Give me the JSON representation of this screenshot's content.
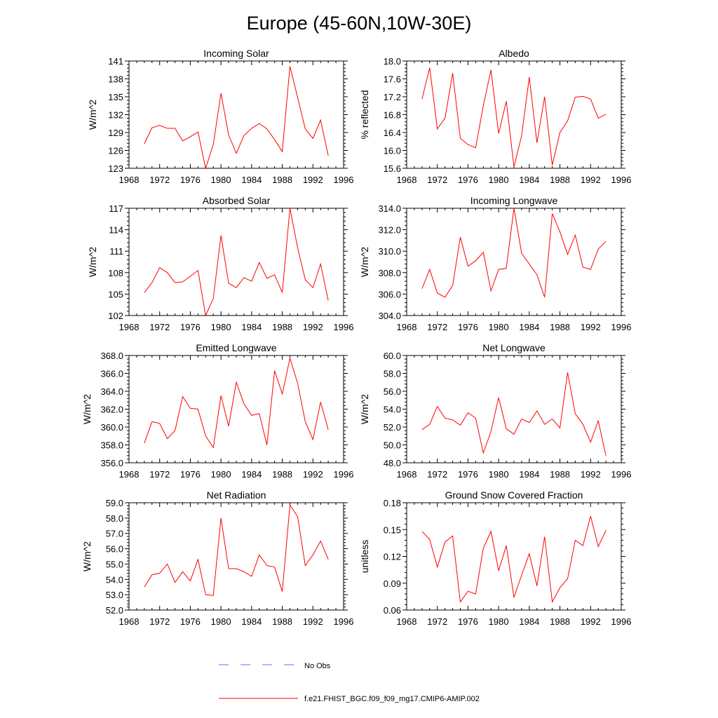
{
  "figure": {
    "title": "Europe (45-60N,10W-30E)",
    "line_color": "#ff0000",
    "obs_color": "#6a6aff"
  },
  "legend": {
    "obs_label": "No Obs",
    "model_label": "f.e21.FHIST_BGC.f09_f09_mg17.CMIP6-AMIP.002"
  },
  "chart_data": [
    {
      "type": "line",
      "title": "Incoming Solar",
      "ylabel": "W/m^2",
      "xlim": [
        1968,
        1996
      ],
      "xticks": [
        1968,
        1972,
        1976,
        1980,
        1984,
        1988,
        1992,
        1996
      ],
      "ylim": [
        123,
        141
      ],
      "yticks": [
        123,
        126,
        129,
        132,
        135,
        138,
        141
      ],
      "ydecimals": 0,
      "x": [
        1970,
        1971,
        1972,
        1973,
        1974,
        1975,
        1976,
        1977,
        1978,
        1979,
        1980,
        1981,
        1982,
        1983,
        1984,
        1985,
        1986,
        1987,
        1988,
        1989,
        1990,
        1991,
        1992,
        1993,
        1994
      ],
      "y": [
        127.1,
        129.8,
        130.2,
        129.7,
        129.7,
        127.6,
        128.3,
        129.1,
        123.0,
        127.0,
        135.6,
        128.6,
        125.5,
        128.5,
        129.7,
        130.5,
        129.6,
        127.8,
        125.8,
        140.1,
        134.9,
        129.6,
        128.0,
        131.1,
        125.1
      ]
    },
    {
      "type": "line",
      "title": "Albedo",
      "ylabel": "% reflected",
      "xlim": [
        1968,
        1996
      ],
      "xticks": [
        1968,
        1972,
        1976,
        1980,
        1984,
        1988,
        1992,
        1996
      ],
      "ylim": [
        15.6,
        18.0
      ],
      "yticks": [
        15.6,
        16.0,
        16.4,
        16.8,
        17.2,
        17.6,
        18.0
      ],
      "ydecimals": 1,
      "x": [
        1970,
        1971,
        1972,
        1973,
        1974,
        1975,
        1976,
        1977,
        1978,
        1979,
        1980,
        1981,
        1982,
        1983,
        1984,
        1985,
        1986,
        1987,
        1988,
        1989,
        1990,
        1991,
        1992,
        1993,
        1994
      ],
      "y": [
        17.15,
        17.85,
        16.48,
        16.72,
        17.73,
        16.27,
        16.13,
        16.06,
        17.0,
        17.8,
        16.38,
        17.1,
        15.63,
        16.33,
        17.64,
        16.17,
        17.2,
        15.67,
        16.4,
        16.66,
        17.19,
        17.21,
        17.15,
        16.72,
        16.81
      ]
    },
    {
      "type": "line",
      "title": "Absorbed Solar",
      "ylabel": "W/m^2",
      "xlim": [
        1968,
        1996
      ],
      "xticks": [
        1968,
        1972,
        1976,
        1980,
        1984,
        1988,
        1992,
        1996
      ],
      "ylim": [
        102,
        117
      ],
      "yticks": [
        102,
        105,
        108,
        111,
        114,
        117
      ],
      "ydecimals": 0,
      "x": [
        1970,
        1971,
        1972,
        1973,
        1974,
        1975,
        1976,
        1977,
        1978,
        1979,
        1980,
        1981,
        1982,
        1983,
        1984,
        1985,
        1986,
        1987,
        1988,
        1989,
        1990,
        1991,
        1992,
        1993,
        1994
      ],
      "y": [
        105.2,
        106.6,
        108.7,
        108.0,
        106.6,
        106.7,
        107.5,
        108.3,
        102.0,
        104.4,
        113.2,
        106.5,
        105.9,
        107.3,
        106.8,
        109.4,
        107.2,
        107.7,
        105.2,
        117.0,
        111.5,
        107.0,
        105.9,
        109.2,
        104.1
      ]
    },
    {
      "type": "line",
      "title": "Incoming Longwave",
      "ylabel": "W/m^2",
      "xlim": [
        1968,
        1996
      ],
      "xticks": [
        1968,
        1972,
        1976,
        1980,
        1984,
        1988,
        1992,
        1996
      ],
      "ylim": [
        304.0,
        314.0
      ],
      "yticks": [
        304.0,
        306.0,
        308.0,
        310.0,
        312.0,
        314.0
      ],
      "ydecimals": 1,
      "x": [
        1970,
        1971,
        1972,
        1973,
        1974,
        1975,
        1976,
        1977,
        1978,
        1979,
        1980,
        1981,
        1982,
        1983,
        1984,
        1985,
        1986,
        1987,
        1988,
        1989,
        1990,
        1991,
        1992,
        1993,
        1994
      ],
      "y": [
        306.5,
        308.3,
        306.1,
        305.7,
        306.8,
        311.3,
        308.6,
        309.1,
        309.9,
        306.3,
        308.3,
        308.4,
        314.0,
        309.8,
        308.8,
        307.8,
        305.7,
        313.5,
        311.8,
        309.7,
        311.5,
        308.5,
        308.3,
        310.2,
        310.9
      ]
    },
    {
      "type": "line",
      "title": "Emitted Longwave",
      "ylabel": "W/m^2",
      "xlim": [
        1968,
        1996
      ],
      "xticks": [
        1968,
        1972,
        1976,
        1980,
        1984,
        1988,
        1992,
        1996
      ],
      "ylim": [
        356.0,
        368.0
      ],
      "yticks": [
        356.0,
        358.0,
        360.0,
        362.0,
        364.0,
        366.0,
        368.0
      ],
      "ydecimals": 1,
      "x": [
        1970,
        1971,
        1972,
        1973,
        1974,
        1975,
        1976,
        1977,
        1978,
        1979,
        1980,
        1981,
        1982,
        1983,
        1984,
        1985,
        1986,
        1987,
        1988,
        1989,
        1990,
        1991,
        1992,
        1993,
        1994
      ],
      "y": [
        358.2,
        360.6,
        360.4,
        358.7,
        359.6,
        363.4,
        362.1,
        362.0,
        359.0,
        357.7,
        363.5,
        360.1,
        365.0,
        362.6,
        361.3,
        361.5,
        358.0,
        366.3,
        363.7,
        367.7,
        364.9,
        360.6,
        358.6,
        362.8,
        359.7
      ]
    },
    {
      "type": "line",
      "title": "Net Longwave",
      "ylabel": "W/m^2",
      "xlim": [
        1968,
        1996
      ],
      "xticks": [
        1968,
        1972,
        1976,
        1980,
        1984,
        1988,
        1992,
        1996
      ],
      "ylim": [
        48.0,
        60.0
      ],
      "yticks": [
        48.0,
        50.0,
        52.0,
        54.0,
        56.0,
        58.0,
        60.0
      ],
      "ydecimals": 1,
      "x": [
        1970,
        1971,
        1972,
        1973,
        1974,
        1975,
        1976,
        1977,
        1978,
        1979,
        1980,
        1981,
        1982,
        1983,
        1984,
        1985,
        1986,
        1987,
        1988,
        1989,
        1990,
        1991,
        1992,
        1993,
        1994
      ],
      "y": [
        51.7,
        52.3,
        54.3,
        53.0,
        52.8,
        52.2,
        53.6,
        53.0,
        49.1,
        51.5,
        55.3,
        51.8,
        51.2,
        52.9,
        52.5,
        53.8,
        52.3,
        52.9,
        51.9,
        58.1,
        53.5,
        52.3,
        50.3,
        52.7,
        48.8
      ]
    },
    {
      "type": "line",
      "title": "Net Radiation",
      "ylabel": "W/m^2",
      "xlim": [
        1968,
        1996
      ],
      "xticks": [
        1968,
        1972,
        1976,
        1980,
        1984,
        1988,
        1992,
        1996
      ],
      "ylim": [
        52.0,
        59.0
      ],
      "yticks": [
        52.0,
        53.0,
        54.0,
        55.0,
        56.0,
        57.0,
        58.0,
        59.0
      ],
      "ydecimals": 1,
      "x": [
        1970,
        1971,
        1972,
        1973,
        1974,
        1975,
        1976,
        1977,
        1978,
        1979,
        1980,
        1981,
        1982,
        1983,
        1984,
        1985,
        1986,
        1987,
        1988,
        1989,
        1990,
        1991,
        1992,
        1993,
        1994
      ],
      "y": [
        53.5,
        54.3,
        54.4,
        55.0,
        53.8,
        54.5,
        53.9,
        55.3,
        53.0,
        52.95,
        58.0,
        54.7,
        54.7,
        54.5,
        54.2,
        55.6,
        54.9,
        54.8,
        53.2,
        58.85,
        58.1,
        54.9,
        55.6,
        56.5,
        55.3
      ]
    },
    {
      "type": "line",
      "title": "Ground Snow Covered Fraction",
      "ylabel": "unitless",
      "xlim": [
        1968,
        1996
      ],
      "xticks": [
        1968,
        1972,
        1976,
        1980,
        1984,
        1988,
        1992,
        1996
      ],
      "ylim": [
        0.06,
        0.18
      ],
      "yticks": [
        0.06,
        0.09,
        0.12,
        0.15,
        0.18
      ],
      "ydecimals": 2,
      "x": [
        1970,
        1971,
        1972,
        1973,
        1974,
        1975,
        1976,
        1977,
        1978,
        1979,
        1980,
        1981,
        1982,
        1983,
        1984,
        1985,
        1986,
        1987,
        1988,
        1989,
        1990,
        1991,
        1992,
        1993,
        1994
      ],
      "y": [
        0.148,
        0.139,
        0.108,
        0.136,
        0.143,
        0.069,
        0.081,
        0.078,
        0.129,
        0.148,
        0.104,
        0.132,
        0.074,
        0.099,
        0.123,
        0.087,
        0.142,
        0.069,
        0.085,
        0.095,
        0.138,
        0.132,
        0.165,
        0.131,
        0.149
      ]
    }
  ]
}
